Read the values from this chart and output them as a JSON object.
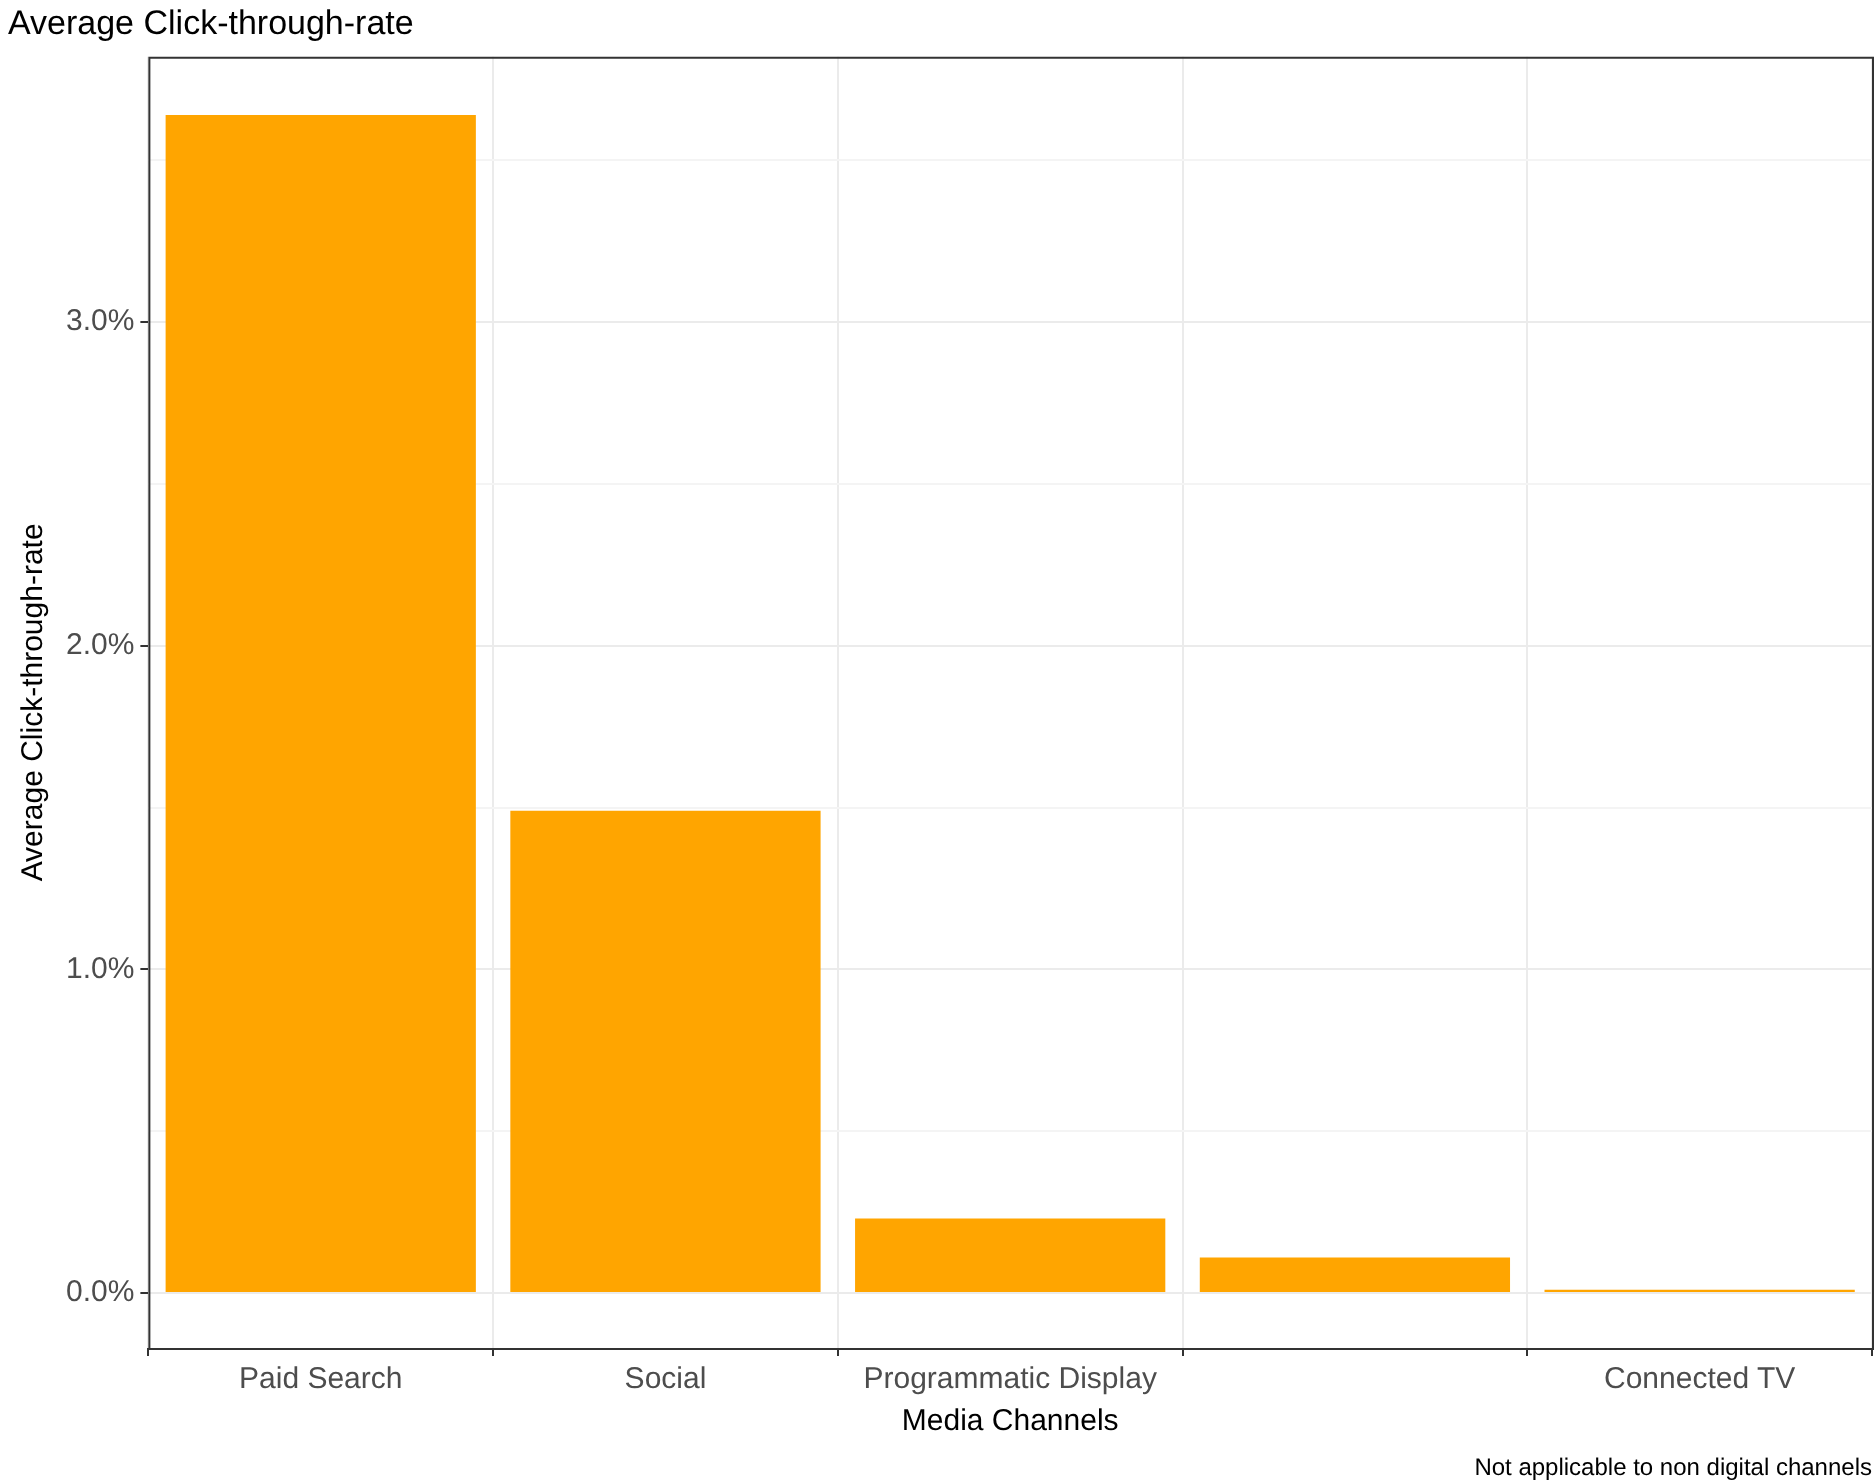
{
  "chart_data": {
    "type": "bar",
    "title": "Average Click-through-rate",
    "xlabel": "Media Channels",
    "ylabel": "Average Click-through-rate",
    "categories": [
      "Paid Search",
      "Social",
      "Programmatic Display",
      null,
      "Connected TV"
    ],
    "values": [
      3.64,
      1.49,
      0.23,
      0.11,
      0.01
    ],
    "color": "#ffa500",
    "ylim": [
      -0.17,
      3.82
    ],
    "yticks": [
      {
        "value": 0,
        "label": "0.0%"
      },
      {
        "value": 0.5,
        "label": null
      },
      {
        "value": 1,
        "label": "1.0%"
      },
      {
        "value": 1.5,
        "label": null
      },
      {
        "value": 2,
        "label": "2.0%"
      },
      {
        "value": 2.5,
        "label": null
      },
      {
        "value": 3,
        "label": "3.0%"
      },
      {
        "value": 3.5,
        "label": null
      }
    ],
    "grid": true,
    "annotations": [
      "Not applicable to non digital channels"
    ]
  }
}
